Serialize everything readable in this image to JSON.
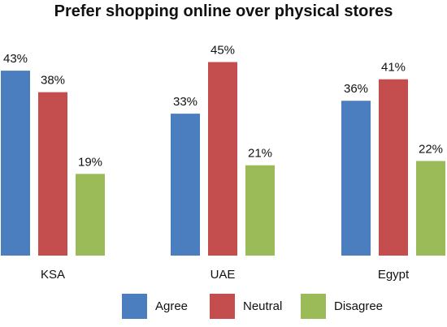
{
  "chart_data": {
    "type": "bar",
    "title": "Prefer shopping online over physical stores",
    "categories": [
      "KSA",
      "UAE",
      "Egypt"
    ],
    "series": [
      {
        "name": "Agree",
        "color": "#4a7ebf",
        "values": [
          43,
          33,
          36
        ]
      },
      {
        "name": "Neutral",
        "color": "#c44e4e",
        "values": [
          38,
          45,
          41
        ]
      },
      {
        "name": "Disagree",
        "color": "#9bbb59",
        "values": [
          19,
          21,
          22
        ]
      }
    ],
    "value_suffix": "%",
    "ylim": [
      0,
      45
    ],
    "grid": false,
    "legend_position": "bottom"
  }
}
